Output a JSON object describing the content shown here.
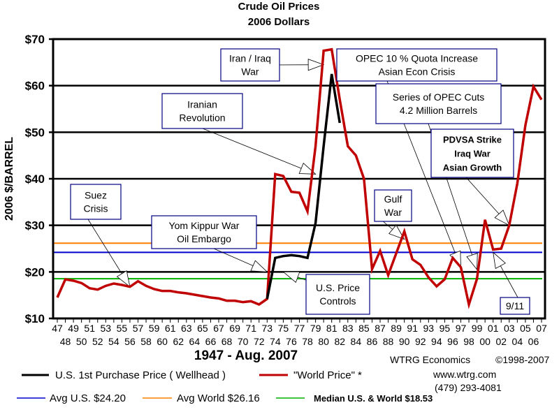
{
  "chart_data": {
    "type": "line",
    "title": "Crude Oil Prices",
    "subtitle": "2006 Dollars",
    "xlabel": "1947 - Aug. 2007",
    "ylabel": "2006 $/BARREL",
    "ylim": [
      10,
      70
    ],
    "yticks": [
      10,
      20,
      30,
      40,
      50,
      60,
      70
    ],
    "ytick_labels": [
      "$10",
      "$20",
      "$30",
      "$40",
      "$50",
      "$60",
      "$70"
    ],
    "grid": true,
    "x": [
      1947,
      1948,
      1949,
      1950,
      1951,
      1952,
      1953,
      1954,
      1955,
      1956,
      1957,
      1958,
      1959,
      1960,
      1961,
      1962,
      1963,
      1964,
      1965,
      1966,
      1967,
      1968,
      1969,
      1970,
      1971,
      1972,
      1973,
      1974,
      1975,
      1976,
      1977,
      1978,
      1979,
      1980,
      1981,
      1982,
      1983,
      1984,
      1985,
      1986,
      1987,
      1988,
      1989,
      1990,
      1991,
      1992,
      1993,
      1994,
      1995,
      1996,
      1997,
      1998,
      1999,
      2000,
      2001,
      2002,
      2003,
      2004,
      2005,
      2006,
      2007
    ],
    "xtick_labels_top": [
      "47",
      "49",
      "51",
      "53",
      "55",
      "57",
      "59",
      "61",
      "63",
      "65",
      "67",
      "69",
      "71",
      "73",
      "75",
      "77",
      "79",
      "81",
      "83",
      "85",
      "87",
      "89",
      "91",
      "93",
      "95",
      "97",
      "99",
      "01",
      "03",
      "05",
      "07"
    ],
    "xtick_labels_bottom": [
      "48",
      "50",
      "52",
      "54",
      "56",
      "58",
      "60",
      "62",
      "64",
      "66",
      "68",
      "70",
      "72",
      "74",
      "76",
      "78",
      "80",
      "82",
      "84",
      "86",
      "88",
      "90",
      "92",
      "94",
      "96",
      "98",
      "00",
      "02",
      "04",
      "06"
    ],
    "series": [
      {
        "name": "\"World Price\" *",
        "color": "#c00000",
        "values": [
          14.5,
          18.4,
          18.1,
          17.6,
          16.5,
          16.2,
          17.0,
          17.5,
          17.2,
          16.8,
          18.0,
          17.0,
          16.3,
          15.9,
          15.9,
          15.6,
          15.4,
          15.1,
          14.8,
          14.5,
          14.3,
          13.8,
          13.8,
          13.5,
          13.7,
          13.0,
          14.2,
          41.0,
          40.6,
          37.2,
          37.0,
          33.0,
          47.0,
          67.5,
          67.8,
          57.0,
          47.0,
          45.0,
          40.0,
          20.6,
          24.5,
          19.3,
          24.0,
          28.7,
          22.7,
          21.5,
          18.8,
          16.9,
          18.4,
          23.0,
          21.0,
          13.0,
          18.5,
          31.2,
          24.8,
          25.0,
          30.0,
          39.0,
          51.5,
          59.8,
          57.0
        ]
      },
      {
        "name": "U.S. 1st Purchase Price ( Wellhead )",
        "color": "#000000",
        "x": [
          1973,
          1974,
          1975,
          1976,
          1977,
          1978,
          1979,
          1980,
          1981,
          1982
        ],
        "values": [
          14.2,
          23.0,
          23.4,
          23.6,
          23.4,
          23.0,
          30.5,
          47.0,
          62.5,
          52.0
        ]
      }
    ],
    "reference_lines": [
      {
        "name": "Avg U.S. $24.20",
        "value": 24.2,
        "color": "#0000cc"
      },
      {
        "name": "Avg World $26.16",
        "value": 26.16,
        "color": "#ff8000"
      },
      {
        "name": "Median U.S. & World  $18.53",
        "value": 18.53,
        "color": "#00b000"
      }
    ],
    "annotations": [
      {
        "text": [
          "Suez",
          "Crisis"
        ],
        "target_year": 1956,
        "target_value": 16.8
      },
      {
        "text": [
          "Yom Kippur War",
          "Oil Embargo"
        ],
        "target_year": 1973,
        "target_value": 20.0
      },
      {
        "text": [
          "U.S. Price",
          "Controls"
        ],
        "target_year": 1975,
        "target_value": 20.0
      },
      {
        "text": [
          "Iranian",
          "Revolution"
        ],
        "target_year": 1979,
        "target_value": 41.0
      },
      {
        "text": [
          "Iran / Iraq",
          "War"
        ],
        "target_year": 1980,
        "target_value": 64.5
      },
      {
        "text": [
          "OPEC 10 % Quota Increase",
          "Asian Econ Crisis"
        ],
        "target_year": 1997,
        "target_value": 21.0
      },
      {
        "text": [
          "Series of OPEC Cuts",
          "4.2 Million Barrels"
        ],
        "target_year": 1999,
        "target_value": 20.5
      },
      {
        "text": [
          "PDVSA Strike",
          "Iraq War",
          "Asian Growth"
        ],
        "target_year": 2003,
        "target_value": 30.0
      },
      {
        "text": [
          "Gulf",
          "War"
        ],
        "target_year": 1990,
        "target_value": 27.0
      },
      {
        "text": [
          "9/11"
        ],
        "target_year": 2001,
        "target_value": 24.2
      }
    ],
    "legend": {
      "placement": "bottom",
      "wellhead_label": "U.S. 1st Purchase Price ( Wellhead )",
      "world_label": "\"World Price\" *",
      "avg_us_label": "Avg U.S. $24.20",
      "avg_world_label": "Avg World $26.16",
      "median_label": "Median U.S. & World  $18.53"
    }
  },
  "credits": {
    "org": "WTRG Economics",
    "copyright": "©1998-2007",
    "url": "www.wtrg.com",
    "phone": "(479) 293-4081"
  }
}
